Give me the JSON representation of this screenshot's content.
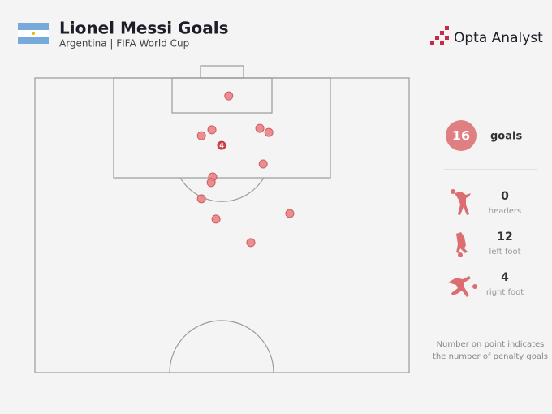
{
  "chart_data": {
    "type": "scatter",
    "title": "Lionel Messi Goals",
    "subtitle": "Argentina | FIFA World Cup",
    "brand": "Opta Analyst",
    "x": [
      51.8,
      47.3,
      44.5,
      60.1,
      62.5,
      49.9,
      61.0,
      47.5,
      47.1,
      44.5,
      68.1,
      48.4,
      57.7
    ],
    "values": [
      6.1,
      17.6,
      19.6,
      17.1,
      18.5,
      22.9,
      29.2,
      33.6,
      35.5,
      41.0,
      46.0,
      47.9,
      55.9
    ],
    "penalties": [
      null,
      null,
      null,
      null,
      null,
      4,
      null,
      null,
      null,
      null,
      null,
      null,
      null
    ],
    "xlim": [
      0,
      100
    ],
    "ylim": [
      0,
      100
    ],
    "color": "#e88487",
    "penalty_color": "#c9303d",
    "summary": [
      {
        "value": 16,
        "label": "goals"
      },
      {
        "value": 0,
        "label": "headers"
      },
      {
        "value": 12,
        "label": "left foot"
      },
      {
        "value": 4,
        "label": "right foot"
      }
    ],
    "note": [
      "Number on point indicates",
      "the number of penalty goals"
    ]
  }
}
